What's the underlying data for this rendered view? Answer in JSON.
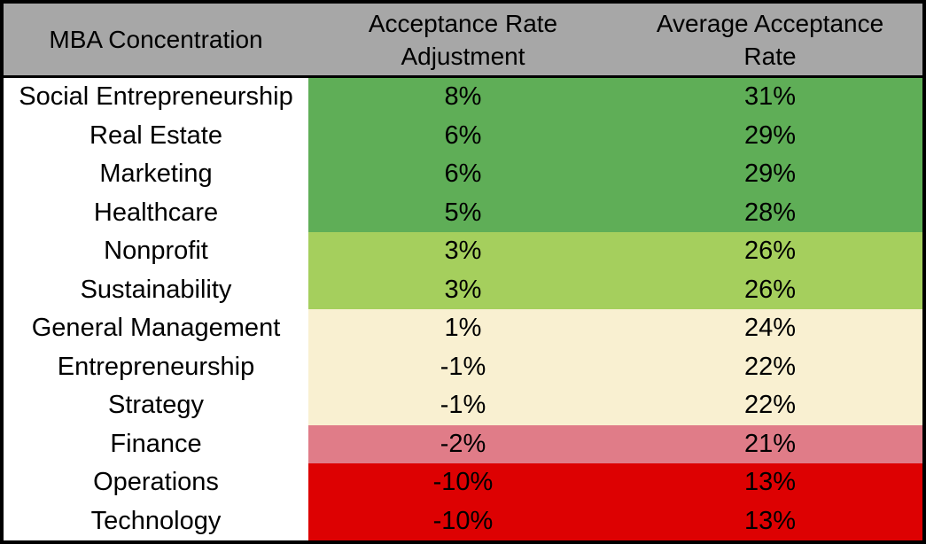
{
  "table": {
    "header": {
      "col1": {
        "line1": "MBA Concentration"
      },
      "col2": {
        "line1": "Acceptance Rate",
        "line2": "Adjustment"
      },
      "col3": {
        "line1": "Average Acceptance",
        "line2": "Rate"
      }
    },
    "rows": [
      {
        "concentration": "Social Entrepreneurship",
        "adjustment": "8%",
        "rate": "31%",
        "band": "dark_green"
      },
      {
        "concentration": "Real Estate",
        "adjustment": "6%",
        "rate": "29%",
        "band": "dark_green"
      },
      {
        "concentration": "Marketing",
        "adjustment": "6%",
        "rate": "29%",
        "band": "dark_green"
      },
      {
        "concentration": "Healthcare",
        "adjustment": "5%",
        "rate": "28%",
        "band": "dark_green"
      },
      {
        "concentration": "Nonprofit",
        "adjustment": "3%",
        "rate": "26%",
        "band": "light_green"
      },
      {
        "concentration": "Sustainability",
        "adjustment": "3%",
        "rate": "26%",
        "band": "light_green"
      },
      {
        "concentration": "General Management",
        "adjustment": "1%",
        "rate": "24%",
        "band": "cream"
      },
      {
        "concentration": "Entrepreneurship",
        "adjustment": "-1%",
        "rate": "22%",
        "band": "cream"
      },
      {
        "concentration": "Strategy",
        "adjustment": "-1%",
        "rate": "22%",
        "band": "cream"
      },
      {
        "concentration": "Finance",
        "adjustment": "-2%",
        "rate": "21%",
        "band": "pink"
      },
      {
        "concentration": "Operations",
        "adjustment": "-10%",
        "rate": "13%",
        "band": "red"
      },
      {
        "concentration": "Technology",
        "adjustment": "-10%",
        "rate": "13%",
        "band": "red"
      }
    ]
  },
  "colors": {
    "header_bg": "#A7A7A7",
    "first_column_bg": "#FFFFFF",
    "border": "#000000",
    "text": "#000000",
    "bands": {
      "dark_green": "#5FAE57",
      "light_green": "#A5CF5D",
      "cream": "#F9F0D1",
      "pink": "#E07C88",
      "red": "#DD0102"
    }
  },
  "chart_data": {
    "type": "table",
    "title": "MBA Concentration Acceptance Rates",
    "columns": [
      "MBA Concentration",
      "Acceptance Rate Adjustment",
      "Average Acceptance Rate"
    ],
    "rows": [
      [
        "Social Entrepreneurship",
        "8%",
        "31%"
      ],
      [
        "Real Estate",
        "6%",
        "29%"
      ],
      [
        "Marketing",
        "6%",
        "29%"
      ],
      [
        "Healthcare",
        "5%",
        "28%"
      ],
      [
        "Nonprofit",
        "3%",
        "26%"
      ],
      [
        "Sustainability",
        "3%",
        "26%"
      ],
      [
        "General Management",
        "1%",
        "24%"
      ],
      [
        "Entrepreneurship",
        "-1%",
        "22%"
      ],
      [
        "Strategy",
        "-1%",
        "22%"
      ],
      [
        "Finance",
        "-2%",
        "21%"
      ],
      [
        "Operations",
        "-10%",
        "13%"
      ],
      [
        "Technology",
        "-10%",
        "13%"
      ]
    ],
    "adjustment_values": [
      8,
      6,
      6,
      5,
      3,
      3,
      1,
      -1,
      -1,
      -2,
      -10,
      -10
    ],
    "average_rate_values": [
      31,
      29,
      29,
      28,
      26,
      26,
      24,
      22,
      22,
      21,
      13,
      13
    ],
    "color_coding": "rows shaded green (high) to red (low) by acceptance rate, first column white"
  }
}
